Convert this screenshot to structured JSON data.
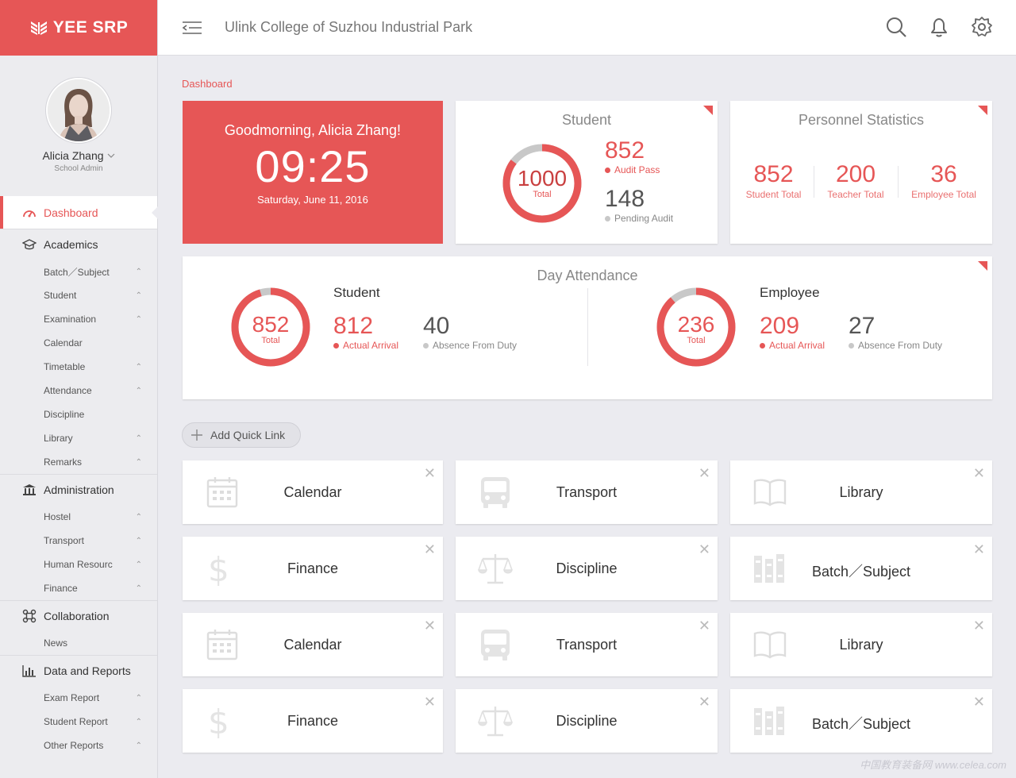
{
  "app": {
    "logo": "YEE SRP",
    "school": "Ulink College of Suzhou Industrial Park"
  },
  "user": {
    "name": "Alicia Zhang",
    "role": "School Admin"
  },
  "sidebar": {
    "active": "Dashboard",
    "groups": [
      {
        "label": "Academics",
        "items": [
          {
            "label": "Batch／Subject"
          },
          {
            "label": "Student"
          },
          {
            "label": "Examination"
          },
          {
            "label": "Calendar"
          },
          {
            "label": "Timetable"
          },
          {
            "label": "Attendance"
          },
          {
            "label": "Discipline"
          },
          {
            "label": "Library"
          },
          {
            "label": "Remarks"
          }
        ]
      },
      {
        "label": "Administration",
        "items": [
          {
            "label": "Hostel"
          },
          {
            "label": "Transport"
          },
          {
            "label": "Human Resourc"
          },
          {
            "label": "Finance"
          }
        ]
      },
      {
        "label": "Collaboration",
        "items": [
          {
            "label": "News"
          }
        ]
      },
      {
        "label": "Data and Reports",
        "items": [
          {
            "label": "Exam Report"
          },
          {
            "label": "Student Report"
          },
          {
            "label": "Other Reports"
          }
        ]
      }
    ]
  },
  "breadcrumb": "Dashboard",
  "greeting": {
    "text": "Goodmorning, Alicia Zhang!",
    "time": "09:25",
    "date": "Saturday, June 11, 2016"
  },
  "student_card": {
    "title": "Student",
    "total": "1000",
    "total_label": "Total",
    "audit_pass": "852",
    "audit_pass_label": "Audit Pass",
    "pending": "148",
    "pending_label": "Pending Audit",
    "pass_fraction": 0.852
  },
  "personnel": {
    "title": "Personnel Statistics",
    "stats": [
      {
        "value": "852",
        "label": "Student Total"
      },
      {
        "value": "200",
        "label": "Teacher Total"
      },
      {
        "value": "36",
        "label": "Employee Total"
      }
    ]
  },
  "attendance": {
    "title": "Day Attendance",
    "student": {
      "title": "Student",
      "total": "852",
      "total_label": "Total",
      "arrival": "812",
      "arrival_label": "Actual Arrival",
      "absence": "40",
      "absence_label": "Absence From Duty",
      "arrival_fraction": 0.953
    },
    "employee": {
      "title": "Employee",
      "total": "236",
      "total_label": "Total",
      "arrival": "209",
      "arrival_label": "Actual Arrival",
      "absence": "27",
      "absence_label": "Absence From Duty",
      "arrival_fraction": 0.886
    }
  },
  "quick_links": {
    "add_label": "Add Quick Link",
    "close_glyph": "✕",
    "items": [
      {
        "label": "Calendar",
        "icon": "calendar-icon"
      },
      {
        "label": "Transport",
        "icon": "bus-icon"
      },
      {
        "label": "Library",
        "icon": "book-icon"
      },
      {
        "label": "Finance",
        "icon": "dollar-icon"
      },
      {
        "label": "Discipline",
        "icon": "scale-icon"
      },
      {
        "label": "Batch／Subject",
        "icon": "books-icon"
      },
      {
        "label": "Calendar",
        "icon": "calendar-icon"
      },
      {
        "label": "Transport",
        "icon": "bus-icon"
      },
      {
        "label": "Library",
        "icon": "book-icon"
      },
      {
        "label": "Finance",
        "icon": "dollar-icon"
      },
      {
        "label": "Discipline",
        "icon": "scale-icon"
      },
      {
        "label": "Batch／Subject",
        "icon": "books-icon"
      }
    ]
  },
  "watermark": "中国教育装备网 www.celea.com",
  "colors": {
    "accent": "#e65656",
    "muted_ring": "#c8c8c8"
  }
}
